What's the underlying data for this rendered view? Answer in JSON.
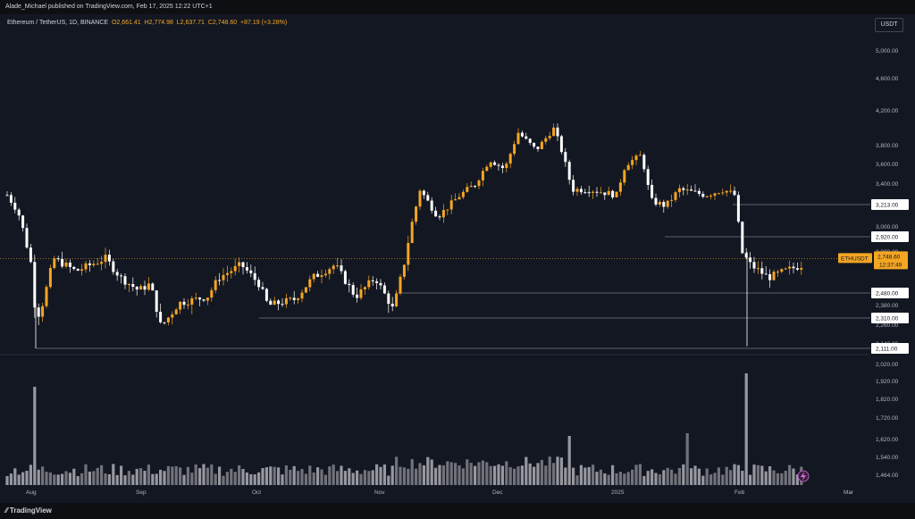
{
  "header": {
    "published": "Alade_Michael published on TradingView.com, Feb 17, 2025 12:22 UTC+1"
  },
  "legend": {
    "symbol": "Ethereum / TetherUS, 1D, BINANCE",
    "open": "O2,661.41",
    "high": "H2,774.98",
    "low": "L2,637.71",
    "close": "C2,748.60",
    "change": "+87.19 (+3.28%)"
  },
  "currency": "USDT",
  "footer": {
    "brand": "TradingView"
  },
  "colors": {
    "background": "#131722",
    "up": "#f5a623",
    "down": "#ffffff",
    "price_tag": "#f5a623",
    "level_line": "#787b86"
  },
  "icons": {
    "logo": "tradingview-logo-icon",
    "alert": "flash-icon"
  },
  "price_tag": {
    "symbol": "ETHUSDT",
    "price": "2,748.60",
    "countdown": "12:37:49"
  },
  "y_axis": {
    "ticks": [
      "5,000.00",
      "4,600.00",
      "4,200.00",
      "3,800.00",
      "3,600.00",
      "3,400.00",
      "3,000.00",
      "2,800.00",
      "2,380.00",
      "2,260.00",
      "2,140.00",
      "2,020.00",
      "1,920.00",
      "1,820.00",
      "1,720.00",
      "1,620.00",
      "1,540.00",
      "1,464.00"
    ]
  },
  "levels": [
    "3,213.00",
    "2,920.00",
    "2,480.00",
    "2,310.00",
    "2,111.00"
  ],
  "x_axis": {
    "ticks": [
      "Aug",
      "Sep",
      "Oct",
      "Nov",
      "Dec",
      "2025",
      "Feb",
      "Mar"
    ]
  },
  "chart_data": {
    "type": "candlestick",
    "symbol": "Ethereum / TetherUS, 1D, BINANCE",
    "last_price": 2748.6,
    "horizontal_levels": [
      3213.0,
      2920.0,
      2480.0,
      2310.0,
      2111.0
    ],
    "anchors": [
      {
        "x": "Aug",
        "y": 3300
      },
      {
        "x": "Aug",
        "y": 2300
      },
      {
        "x": "Aug",
        "y": 2700
      },
      {
        "x": "Sep",
        "y": 2750
      },
      {
        "x": "Sep",
        "y": 2200
      },
      {
        "x": "Sep",
        "y": 2400
      },
      {
        "x": "Oct",
        "y": 2650
      },
      {
        "x": "Oct",
        "y": 2380
      },
      {
        "x": "Nov",
        "y": 2350
      },
      {
        "x": "Nov",
        "y": 3000
      },
      {
        "x": "Nov",
        "y": 3450
      },
      {
        "x": "Dec",
        "y": 3650
      },
      {
        "x": "Dec",
        "y": 4000
      },
      {
        "x": "2025",
        "y": 3350
      },
      {
        "x": "2025",
        "y": 3700
      },
      {
        "x": "2025",
        "y": 3200
      },
      {
        "x": "Feb",
        "y": 3300
      },
      {
        "x": "Feb",
        "y": 2700
      },
      {
        "x": "Feb",
        "y": 2650
      }
    ]
  }
}
